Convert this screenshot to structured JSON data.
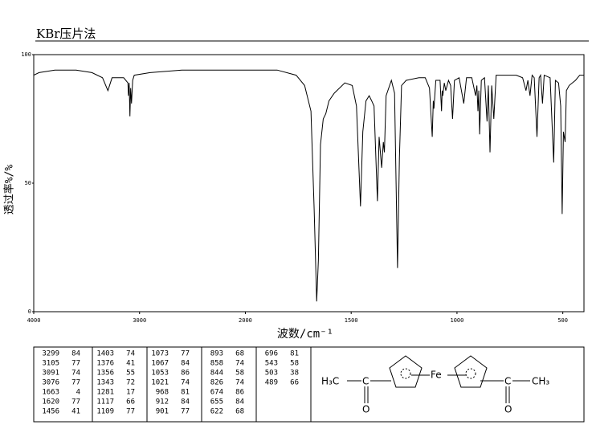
{
  "chart_data": {
    "type": "line",
    "title": "KBr压片法",
    "x_label": "波数/cm⁻¹",
    "y_label": "透过率%/%",
    "xlim": [
      4000,
      400
    ],
    "x_scale_change_at": 2000,
    "xticks": [
      4000,
      3000,
      2000,
      1500,
      1000,
      500
    ],
    "ylim": [
      0,
      100
    ],
    "yticks": [
      0,
      50,
      100
    ],
    "color": "#000000",
    "x": [
      4000,
      3950,
      3800,
      3600,
      3450,
      3350,
      3299,
      3260,
      3150,
      3110,
      3105,
      3098,
      3091,
      3084,
      3076,
      3065,
      3050,
      2900,
      2600,
      2300,
      2000,
      1850,
      1760,
      1720,
      1690,
      1675,
      1663,
      1655,
      1645,
      1632,
      1620,
      1605,
      1580,
      1530,
      1495,
      1475,
      1456,
      1445,
      1430,
      1415,
      1403,
      1392,
      1376,
      1368,
      1356,
      1348,
      1343,
      1335,
      1310,
      1295,
      1281,
      1272,
      1262,
      1240,
      1180,
      1150,
      1130,
      1117,
      1112,
      1109,
      1100,
      1080,
      1073,
      1070,
      1067,
      1060,
      1053,
      1040,
      1030,
      1021,
      1012,
      990,
      968,
      955,
      930,
      912,
      906,
      901,
      897,
      893,
      885,
      870,
      858,
      852,
      844,
      836,
      826,
      815,
      780,
      720,
      690,
      674,
      665,
      655,
      645,
      635,
      622,
      612,
      605,
      596,
      588,
      560,
      543,
      535,
      520,
      510,
      503,
      497,
      489,
      483,
      470,
      440,
      420,
      400
    ],
    "values": [
      92,
      93,
      94,
      94,
      93,
      91,
      86,
      91,
      91,
      89,
      84,
      89,
      76,
      87,
      81,
      90,
      92,
      93,
      94,
      94,
      94,
      94,
      92,
      88,
      78,
      40,
      4,
      20,
      65,
      75,
      77,
      82,
      85,
      89,
      88,
      80,
      41,
      70,
      82,
      84,
      82,
      80,
      43,
      68,
      56,
      66,
      62,
      84,
      90,
      85,
      17,
      60,
      88,
      90,
      91,
      91,
      87,
      68,
      82,
      79,
      90,
      90,
      78,
      86,
      84,
      89,
      86,
      90,
      88,
      75,
      90,
      91,
      81,
      91,
      91,
      84,
      88,
      78,
      86,
      69,
      90,
      91,
      74,
      88,
      62,
      88,
      75,
      92,
      92,
      92,
      91,
      86,
      90,
      84,
      92,
      91,
      68,
      91,
      92,
      81,
      92,
      91,
      58,
      90,
      89,
      80,
      38,
      70,
      66,
      86,
      88,
      90,
      92,
      92
    ]
  },
  "peaks": [
    [
      3299,
      84
    ],
    [
      3105,
      77
    ],
    [
      3091,
      74
    ],
    [
      3076,
      77
    ],
    [
      1663,
      4
    ],
    [
      1620,
      77
    ],
    [
      1456,
      41
    ],
    [
      1403,
      74
    ],
    [
      1376,
      41
    ],
    [
      1356,
      55
    ],
    [
      1343,
      72
    ],
    [
      1281,
      17
    ],
    [
      1117,
      66
    ],
    [
      1109,
      77
    ],
    [
      1073,
      77
    ],
    [
      1067,
      84
    ],
    [
      1053,
      86
    ],
    [
      1021,
      74
    ],
    [
      968,
      81
    ],
    [
      912,
      84
    ],
    [
      901,
      77
    ],
    [
      893,
      68
    ],
    [
      858,
      74
    ],
    [
      844,
      58
    ],
    [
      826,
      74
    ],
    [
      674,
      86
    ],
    [
      655,
      84
    ],
    [
      622,
      68
    ],
    [
      696,
      81
    ],
    [
      543,
      58
    ],
    [
      503,
      38
    ],
    [
      489,
      66
    ]
  ],
  "structure": {
    "left_methyl": "H₃C",
    "left_carbon": "C",
    "left_oxygen": "O",
    "metal": "Fe",
    "right_carbon": "C",
    "right_oxygen": "O",
    "right_methyl": "CH₃"
  }
}
